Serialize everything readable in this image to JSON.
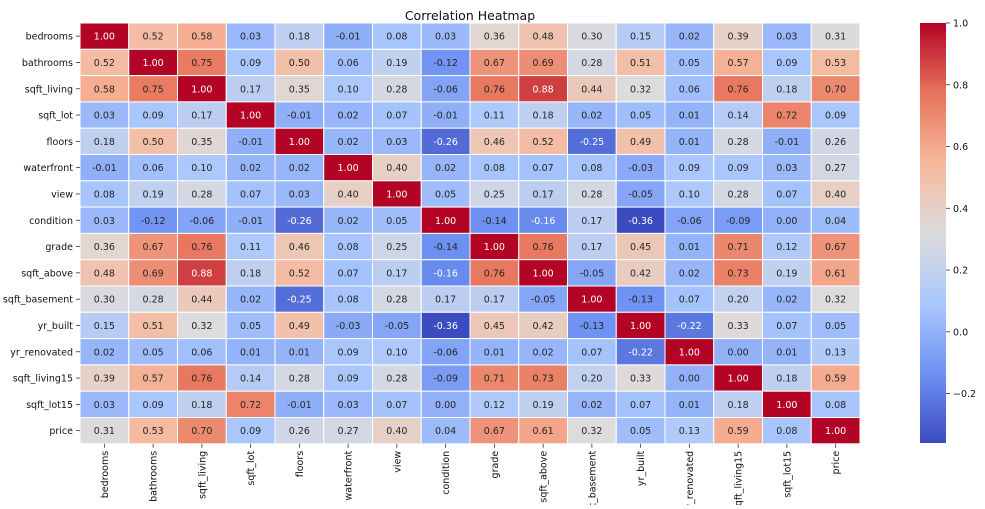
{
  "chart_data": {
    "type": "heatmap",
    "title": "Correlation Heatmap",
    "variables": [
      "bedrooms",
      "bathrooms",
      "sqft_living",
      "sqft_lot",
      "floors",
      "waterfront",
      "view",
      "condition",
      "grade",
      "sqft_above",
      "sqft_basement",
      "yr_built",
      "yr_renovated",
      "sqft_living15",
      "sqft_lot15",
      "price"
    ],
    "matrix": [
      [
        1.0,
        0.52,
        0.58,
        0.03,
        0.18,
        -0.01,
        0.08,
        0.03,
        0.36,
        0.48,
        0.3,
        0.15,
        0.02,
        0.39,
        0.03,
        0.31
      ],
      [
        0.52,
        1.0,
        0.75,
        0.09,
        0.5,
        0.06,
        0.19,
        -0.12,
        0.67,
        0.69,
        0.28,
        0.51,
        0.05,
        0.57,
        0.09,
        0.53
      ],
      [
        0.58,
        0.75,
        1.0,
        0.17,
        0.35,
        0.1,
        0.28,
        -0.06,
        0.76,
        0.88,
        0.44,
        0.32,
        0.06,
        0.76,
        0.18,
        0.7
      ],
      [
        0.03,
        0.09,
        0.17,
        1.0,
        -0.01,
        0.02,
        0.07,
        -0.01,
        0.11,
        0.18,
        0.02,
        0.05,
        0.01,
        0.14,
        0.72,
        0.09
      ],
      [
        0.18,
        0.5,
        0.35,
        -0.01,
        1.0,
        0.02,
        0.03,
        -0.26,
        0.46,
        0.52,
        -0.25,
        0.49,
        0.01,
        0.28,
        -0.01,
        0.26
      ],
      [
        -0.01,
        0.06,
        0.1,
        0.02,
        0.02,
        1.0,
        0.4,
        0.02,
        0.08,
        0.07,
        0.08,
        -0.03,
        0.09,
        0.09,
        0.03,
        0.27
      ],
      [
        0.08,
        0.19,
        0.28,
        0.07,
        0.03,
        0.4,
        1.0,
        0.05,
        0.25,
        0.17,
        0.28,
        -0.05,
        0.1,
        0.28,
        0.07,
        0.4
      ],
      [
        0.03,
        -0.12,
        -0.06,
        -0.01,
        -0.26,
        0.02,
        0.05,
        1.0,
        -0.14,
        -0.16,
        0.17,
        -0.36,
        -0.06,
        -0.09,
        -0.0,
        0.04
      ],
      [
        0.36,
        0.67,
        0.76,
        0.11,
        0.46,
        0.08,
        0.25,
        -0.14,
        1.0,
        0.76,
        0.17,
        0.45,
        0.01,
        0.71,
        0.12,
        0.67
      ],
      [
        0.48,
        0.69,
        0.88,
        0.18,
        0.52,
        0.07,
        0.17,
        -0.16,
        0.76,
        1.0,
        -0.05,
        0.42,
        0.02,
        0.73,
        0.19,
        0.61
      ],
      [
        0.3,
        0.28,
        0.44,
        0.02,
        -0.25,
        0.08,
        0.28,
        0.17,
        0.17,
        -0.05,
        1.0,
        -0.13,
        0.07,
        0.2,
        0.02,
        0.32
      ],
      [
        0.15,
        0.51,
        0.32,
        0.05,
        0.49,
        -0.03,
        -0.05,
        -0.36,
        0.45,
        0.42,
        -0.13,
        1.0,
        -0.22,
        0.33,
        0.07,
        0.05
      ],
      [
        0.02,
        0.05,
        0.06,
        0.01,
        0.01,
        0.09,
        0.1,
        -0.06,
        0.01,
        0.02,
        0.07,
        -0.22,
        1.0,
        -0.0,
        0.01,
        0.13
      ],
      [
        0.39,
        0.57,
        0.76,
        0.14,
        0.28,
        0.09,
        0.28,
        -0.09,
        0.71,
        0.73,
        0.2,
        0.33,
        -0.0,
        1.0,
        0.18,
        0.59
      ],
      [
        0.03,
        0.09,
        0.18,
        0.72,
        -0.01,
        0.03,
        0.07,
        -0.0,
        0.12,
        0.19,
        0.02,
        0.07,
        0.01,
        0.18,
        1.0,
        0.08
      ],
      [
        0.31,
        0.53,
        0.7,
        0.09,
        0.26,
        0.27,
        0.4,
        0.04,
        0.67,
        0.61,
        0.32,
        0.05,
        0.13,
        0.59,
        0.08,
        1.0
      ]
    ],
    "value_format": "2 decimals",
    "colormap": "coolwarm",
    "colormap_stops": [
      "#3b4cc0",
      "#6f92f3",
      "#aac7fd",
      "#dddcdc",
      "#f7b89c",
      "#e7745b",
      "#b40426"
    ],
    "colorbar": {
      "range": [
        -0.36,
        1.0
      ],
      "ticks": [
        "−0.2",
        "0.0",
        "0.2",
        "0.4",
        "0.6",
        "0.8",
        "1.0"
      ],
      "tick_values": [
        -0.2,
        0.0,
        0.2,
        0.4,
        0.6,
        0.8,
        1.0
      ]
    },
    "cell_text_colors": {
      "light": "#ffffff",
      "dark": "#262626"
    },
    "grid_line_color": "#ffffff"
  }
}
